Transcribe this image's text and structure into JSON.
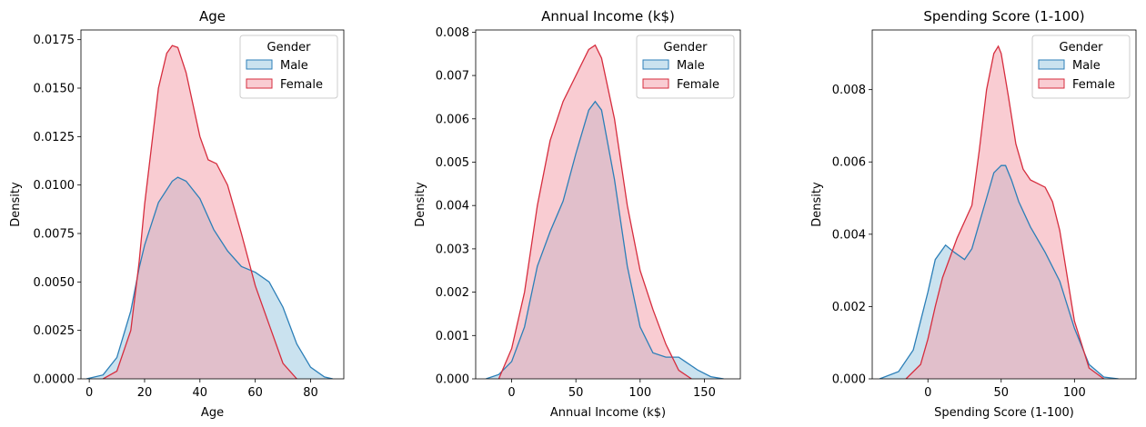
{
  "figure": {
    "background": "#ffffff"
  },
  "chart_data": [
    {
      "type": "area",
      "title": "Age",
      "xlabel": "Age",
      "ylabel": "Density",
      "xlim": [
        -3,
        92
      ],
      "ylim": [
        0,
        0.018
      ],
      "xticks": [
        0,
        20,
        40,
        60,
        80
      ],
      "xtick_labels": [
        "0",
        "20",
        "40",
        "60",
        "80"
      ],
      "yticks": [
        0,
        0.0025,
        0.005,
        0.0075,
        0.01,
        0.0125,
        0.015,
        0.0175
      ],
      "ytick_labels": [
        "0.0000",
        "0.0025",
        "0.0050",
        "0.0075",
        "0.0100",
        "0.0125",
        "0.0150",
        "0.0175"
      ],
      "legend": {
        "title": "Gender",
        "position": "top-right"
      },
      "series": [
        {
          "name": "Male",
          "color": "#2c7fb8",
          "fill": "#9ecae1",
          "x": [
            -1,
            5,
            10,
            15,
            18,
            20,
            25,
            30,
            32,
            35,
            40,
            45,
            50,
            55,
            60,
            65,
            70,
            75,
            80,
            85,
            88
          ],
          "y": [
            0,
            0.0002,
            0.0011,
            0.0035,
            0.0057,
            0.0069,
            0.0091,
            0.0102,
            0.0104,
            0.0102,
            0.0093,
            0.0077,
            0.0066,
            0.0058,
            0.0055,
            0.005,
            0.0037,
            0.0018,
            0.0006,
            0.0001,
            0
          ]
        },
        {
          "name": "Female",
          "color": "#d62d3e",
          "fill": "#f4a3ad",
          "x": [
            5,
            10,
            15,
            18,
            20,
            25,
            28,
            30,
            32,
            35,
            40,
            43,
            46,
            50,
            55,
            60,
            65,
            70,
            75
          ],
          "y": [
            0,
            0.0004,
            0.0025,
            0.006,
            0.009,
            0.015,
            0.0168,
            0.0172,
            0.0171,
            0.0158,
            0.0125,
            0.0113,
            0.0111,
            0.01,
            0.0075,
            0.0048,
            0.0028,
            0.0008,
            0
          ]
        }
      ]
    },
    {
      "type": "area",
      "title": "Annual Income (k$)",
      "xlabel": "Annual Income (k$)",
      "ylabel": "Density",
      "xlim": [
        -28,
        178
      ],
      "ylim": [
        0,
        0.00805
      ],
      "xticks": [
        0,
        50,
        100,
        150
      ],
      "xtick_labels": [
        "0",
        "50",
        "100",
        "150"
      ],
      "yticks": [
        0,
        0.001,
        0.002,
        0.003,
        0.004,
        0.005,
        0.006,
        0.007,
        0.008
      ],
      "ytick_labels": [
        "0.000",
        "0.001",
        "0.002",
        "0.003",
        "0.004",
        "0.005",
        "0.006",
        "0.007",
        "0.008"
      ],
      "legend": {
        "title": "Gender",
        "position": "top-right"
      },
      "series": [
        {
          "name": "Male",
          "color": "#2c7fb8",
          "fill": "#9ecae1",
          "x": [
            -20,
            -10,
            0,
            10,
            20,
            30,
            40,
            50,
            60,
            65,
            70,
            80,
            90,
            100,
            110,
            120,
            125,
            130,
            135,
            145,
            155,
            165
          ],
          "y": [
            0,
            0.0001,
            0.0004,
            0.0012,
            0.0026,
            0.0034,
            0.0041,
            0.0052,
            0.0062,
            0.0064,
            0.0062,
            0.0046,
            0.0026,
            0.0012,
            0.0006,
            0.0005,
            0.0005,
            0.0005,
            0.0004,
            0.0002,
            5e-05,
            0
          ]
        },
        {
          "name": "Female",
          "color": "#d62d3e",
          "fill": "#f4a3ad",
          "x": [
            -10,
            0,
            10,
            20,
            30,
            40,
            50,
            60,
            65,
            70,
            80,
            90,
            100,
            110,
            120,
            130,
            140
          ],
          "y": [
            0,
            0.0007,
            0.002,
            0.004,
            0.0055,
            0.0064,
            0.007,
            0.0076,
            0.0077,
            0.0074,
            0.006,
            0.004,
            0.0025,
            0.0016,
            0.0008,
            0.0002,
            0
          ]
        }
      ]
    },
    {
      "type": "area",
      "title": "Spending Score (1-100)",
      "xlabel": "Spending Score (1-100)",
      "ylabel": "Density",
      "xlim": [
        -38,
        142
      ],
      "ylim": [
        0,
        0.00965
      ],
      "xticks": [
        0,
        50,
        100
      ],
      "xtick_labels": [
        "0",
        "50",
        "100"
      ],
      "yticks": [
        0,
        0.002,
        0.004,
        0.006,
        0.008
      ],
      "ytick_labels": [
        "0.000",
        "0.002",
        "0.004",
        "0.006",
        "0.008"
      ],
      "legend": {
        "title": "Gender",
        "position": "top-right"
      },
      "series": [
        {
          "name": "Male",
          "color": "#2c7fb8",
          "fill": "#9ecae1",
          "x": [
            -33,
            -20,
            -10,
            0,
            5,
            12,
            18,
            25,
            30,
            35,
            40,
            45,
            50,
            53,
            57,
            62,
            70,
            80,
            90,
            100,
            110,
            120,
            130
          ],
          "y": [
            0,
            0.0002,
            0.0008,
            0.0024,
            0.0033,
            0.0037,
            0.0035,
            0.0033,
            0.0036,
            0.0043,
            0.005,
            0.0057,
            0.0059,
            0.0059,
            0.0055,
            0.0049,
            0.0042,
            0.0035,
            0.0027,
            0.0014,
            0.0004,
            5e-05,
            0
          ]
        },
        {
          "name": "Female",
          "color": "#d62d3e",
          "fill": "#f4a3ad",
          "x": [
            -15,
            -5,
            0,
            5,
            10,
            20,
            30,
            35,
            40,
            45,
            48,
            50,
            55,
            60,
            65,
            70,
            75,
            80,
            85,
            90,
            100,
            110,
            120
          ],
          "y": [
            0,
            0.0004,
            0.0011,
            0.002,
            0.0028,
            0.0039,
            0.0048,
            0.0063,
            0.008,
            0.009,
            0.0092,
            0.009,
            0.0078,
            0.0065,
            0.0058,
            0.0055,
            0.0054,
            0.0053,
            0.0049,
            0.0041,
            0.0016,
            0.0003,
            0
          ]
        }
      ]
    }
  ]
}
